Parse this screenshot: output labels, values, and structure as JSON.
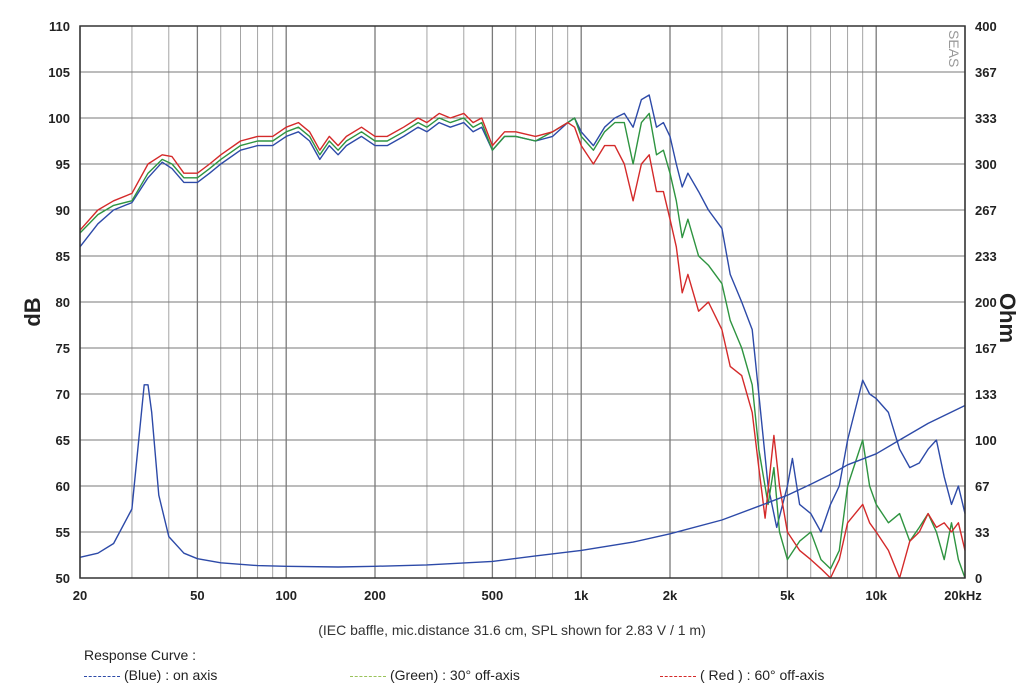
{
  "chart_data": {
    "type": "line",
    "title": "",
    "brand": "SEAS",
    "xlabel": "",
    "ylabel": "dB",
    "y2label": "Ohm",
    "x_scale": "log",
    "xlim": [
      20,
      20000
    ],
    "ylim": [
      50,
      110
    ],
    "y2lim": [
      0,
      400
    ],
    "grid": true,
    "x_ticks": [
      {
        "v": 20,
        "label": "20"
      },
      {
        "v": 50,
        "label": "50"
      },
      {
        "v": 100,
        "label": "100"
      },
      {
        "v": 200,
        "label": "200"
      },
      {
        "v": 500,
        "label": "500"
      },
      {
        "v": 1000,
        "label": "1k"
      },
      {
        "v": 2000,
        "label": "2k"
      },
      {
        "v": 5000,
        "label": "5k"
      },
      {
        "v": 10000,
        "label": "10k"
      },
      {
        "v": 20000,
        "label": "20kHz"
      }
    ],
    "y_ticks": [
      "50",
      "55",
      "60",
      "65",
      "70",
      "75",
      "80",
      "85",
      "90",
      "95",
      "100",
      "105",
      "110"
    ],
    "y2_ticks": [
      "0",
      "33",
      "67",
      "100",
      "133",
      "167",
      "200",
      "233",
      "267",
      "300",
      "333",
      "367",
      "400"
    ],
    "caption": "(IEC baffle, mic.distance 31.6 cm, SPL shown for 2.83 V / 1 m)",
    "legend_title": "Response Curve :",
    "legend": [
      {
        "label": "(Blue)  : on axis",
        "color": "#2d4aa8"
      },
      {
        "label": "(Green) : 30° off-axis",
        "color": "#9ac35a"
      },
      {
        "label": "( Red ) : 60° off-axis",
        "color": "#d42a2a"
      }
    ],
    "series": [
      {
        "color": "#2d4aa8",
        "axis": "left",
        "points": [
          [
            20,
            86
          ],
          [
            23,
            88.5
          ],
          [
            26,
            90
          ],
          [
            30,
            90.8
          ],
          [
            34,
            93.5
          ],
          [
            38,
            95.2
          ],
          [
            41,
            94.5
          ],
          [
            45,
            93
          ],
          [
            50,
            93
          ],
          [
            55,
            94
          ],
          [
            60,
            95
          ],
          [
            70,
            96.5
          ],
          [
            80,
            97
          ],
          [
            90,
            97
          ],
          [
            100,
            98
          ],
          [
            110,
            98.5
          ],
          [
            120,
            97.5
          ],
          [
            130,
            95.5
          ],
          [
            140,
            97
          ],
          [
            150,
            96
          ],
          [
            160,
            97
          ],
          [
            180,
            98
          ],
          [
            200,
            97
          ],
          [
            220,
            97
          ],
          [
            250,
            98
          ],
          [
            280,
            99
          ],
          [
            300,
            98.5
          ],
          [
            330,
            99.5
          ],
          [
            360,
            99
          ],
          [
            400,
            99.5
          ],
          [
            430,
            98.5
          ],
          [
            460,
            99
          ],
          [
            500,
            96.5
          ],
          [
            550,
            98
          ],
          [
            600,
            98
          ],
          [
            700,
            97.5
          ],
          [
            800,
            98
          ],
          [
            900,
            99.5
          ],
          [
            950,
            100
          ],
          [
            1000,
            98.5
          ],
          [
            1100,
            97
          ],
          [
            1200,
            99
          ],
          [
            1300,
            100
          ],
          [
            1400,
            100.5
          ],
          [
            1500,
            99
          ],
          [
            1600,
            102
          ],
          [
            1700,
            102.5
          ],
          [
            1800,
            99
          ],
          [
            1900,
            99.5
          ],
          [
            2000,
            98
          ],
          [
            2100,
            95
          ],
          [
            2200,
            92.5
          ],
          [
            2300,
            94
          ],
          [
            2500,
            92
          ],
          [
            2700,
            90
          ],
          [
            3000,
            88
          ],
          [
            3200,
            83
          ],
          [
            3500,
            80
          ],
          [
            3800,
            77
          ],
          [
            4000,
            70
          ],
          [
            4300,
            60
          ],
          [
            4600,
            55.5
          ],
          [
            5000,
            60
          ],
          [
            5200,
            63
          ],
          [
            5500,
            58
          ],
          [
            6000,
            57
          ],
          [
            6500,
            55
          ],
          [
            7000,
            58
          ],
          [
            7500,
            60
          ],
          [
            8000,
            65
          ],
          [
            9000,
            71.5
          ],
          [
            9500,
            70
          ],
          [
            10000,
            69.5
          ],
          [
            11000,
            68
          ],
          [
            12000,
            64
          ],
          [
            13000,
            62
          ],
          [
            14000,
            62.5
          ],
          [
            15000,
            64
          ],
          [
            16000,
            65
          ],
          [
            17000,
            61
          ],
          [
            18000,
            58
          ],
          [
            19000,
            60
          ],
          [
            20000,
            57
          ]
        ]
      },
      {
        "color": "#2e9440",
        "axis": "left",
        "points": [
          [
            20,
            87.5
          ],
          [
            23,
            89.5
          ],
          [
            26,
            90.5
          ],
          [
            30,
            91
          ],
          [
            34,
            94
          ],
          [
            38,
            95.5
          ],
          [
            41,
            95
          ],
          [
            45,
            93.5
          ],
          [
            50,
            93.5
          ],
          [
            55,
            94.5
          ],
          [
            60,
            95.5
          ],
          [
            70,
            97
          ],
          [
            80,
            97.5
          ],
          [
            90,
            97.5
          ],
          [
            100,
            98.5
          ],
          [
            110,
            99
          ],
          [
            120,
            98
          ],
          [
            130,
            96
          ],
          [
            140,
            97.5
          ],
          [
            150,
            96.5
          ],
          [
            160,
            97.5
          ],
          [
            180,
            98.5
          ],
          [
            200,
            97.5
          ],
          [
            220,
            97.5
          ],
          [
            250,
            98.5
          ],
          [
            280,
            99.5
          ],
          [
            300,
            99
          ],
          [
            330,
            100
          ],
          [
            360,
            99.5
          ],
          [
            400,
            100
          ],
          [
            430,
            99
          ],
          [
            460,
            99.5
          ],
          [
            500,
            96.5
          ],
          [
            550,
            98
          ],
          [
            600,
            98
          ],
          [
            700,
            97.5
          ],
          [
            800,
            98.5
          ],
          [
            900,
            99.5
          ],
          [
            950,
            100
          ],
          [
            1000,
            98
          ],
          [
            1100,
            96.5
          ],
          [
            1200,
            98.5
          ],
          [
            1300,
            99.5
          ],
          [
            1400,
            99.5
          ],
          [
            1500,
            95
          ],
          [
            1600,
            99.5
          ],
          [
            1700,
            100.5
          ],
          [
            1800,
            96
          ],
          [
            1900,
            96.5
          ],
          [
            2000,
            94
          ],
          [
            2100,
            91
          ],
          [
            2200,
            87
          ],
          [
            2300,
            89
          ],
          [
            2500,
            85
          ],
          [
            2700,
            84
          ],
          [
            3000,
            82
          ],
          [
            3200,
            78
          ],
          [
            3500,
            75
          ],
          [
            3800,
            71
          ],
          [
            4000,
            64
          ],
          [
            4300,
            58
          ],
          [
            4500,
            62
          ],
          [
            4700,
            55
          ],
          [
            5000,
            52
          ],
          [
            5500,
            54
          ],
          [
            6000,
            55
          ],
          [
            6500,
            52
          ],
          [
            7000,
            51
          ],
          [
            7500,
            53
          ],
          [
            8000,
            60
          ],
          [
            9000,
            65
          ],
          [
            9500,
            60
          ],
          [
            10000,
            58
          ],
          [
            11000,
            56
          ],
          [
            12000,
            57
          ],
          [
            13000,
            54
          ],
          [
            14000,
            55.5
          ],
          [
            15000,
            57
          ],
          [
            16000,
            55
          ],
          [
            17000,
            52
          ],
          [
            18000,
            56
          ],
          [
            19000,
            52
          ],
          [
            20000,
            50
          ]
        ]
      },
      {
        "color": "#d42a2a",
        "axis": "left",
        "points": [
          [
            20,
            87.8
          ],
          [
            23,
            90
          ],
          [
            26,
            91
          ],
          [
            30,
            91.8
          ],
          [
            34,
            95
          ],
          [
            38,
            96
          ],
          [
            41,
            95.8
          ],
          [
            45,
            94
          ],
          [
            50,
            94
          ],
          [
            55,
            95
          ],
          [
            60,
            96
          ],
          [
            70,
            97.5
          ],
          [
            80,
            98
          ],
          [
            90,
            98
          ],
          [
            100,
            99
          ],
          [
            110,
            99.5
          ],
          [
            120,
            98.5
          ],
          [
            130,
            96.5
          ],
          [
            140,
            98
          ],
          [
            150,
            97
          ],
          [
            160,
            98
          ],
          [
            180,
            99
          ],
          [
            200,
            98
          ],
          [
            220,
            98
          ],
          [
            250,
            99
          ],
          [
            280,
            100
          ],
          [
            300,
            99.5
          ],
          [
            330,
            100.5
          ],
          [
            360,
            100
          ],
          [
            400,
            100.5
          ],
          [
            430,
            99.5
          ],
          [
            460,
            100
          ],
          [
            500,
            97
          ],
          [
            550,
            98.5
          ],
          [
            600,
            98.5
          ],
          [
            700,
            98
          ],
          [
            800,
            98.5
          ],
          [
            900,
            99.5
          ],
          [
            950,
            99
          ],
          [
            1000,
            97
          ],
          [
            1100,
            95
          ],
          [
            1200,
            97
          ],
          [
            1300,
            97
          ],
          [
            1400,
            95
          ],
          [
            1500,
            91
          ],
          [
            1600,
            95
          ],
          [
            1700,
            96
          ],
          [
            1800,
            92
          ],
          [
            1900,
            92
          ],
          [
            2000,
            89
          ],
          [
            2100,
            86
          ],
          [
            2200,
            81
          ],
          [
            2300,
            83
          ],
          [
            2500,
            79
          ],
          [
            2700,
            80
          ],
          [
            3000,
            77
          ],
          [
            3200,
            73
          ],
          [
            3500,
            72
          ],
          [
            3800,
            68
          ],
          [
            4000,
            62
          ],
          [
            4200,
            56.5
          ],
          [
            4500,
            65.5
          ],
          [
            4700,
            60
          ],
          [
            5000,
            55
          ],
          [
            5500,
            53
          ],
          [
            6000,
            52
          ],
          [
            6500,
            51
          ],
          [
            7000,
            50
          ],
          [
            7500,
            52
          ],
          [
            8000,
            56
          ],
          [
            9000,
            58
          ],
          [
            9500,
            56
          ],
          [
            10000,
            55
          ],
          [
            11000,
            53
          ],
          [
            12000,
            50
          ],
          [
            13000,
            54
          ],
          [
            14000,
            55
          ],
          [
            15000,
            57
          ],
          [
            16000,
            55.5
          ],
          [
            17000,
            56
          ],
          [
            18000,
            55
          ],
          [
            19000,
            56
          ],
          [
            20000,
            53
          ]
        ]
      },
      {
        "color": "#2d4aa8",
        "axis": "right",
        "points": [
          [
            20,
            15
          ],
          [
            23,
            18
          ],
          [
            26,
            25
          ],
          [
            30,
            50
          ],
          [
            33,
            140
          ],
          [
            34,
            140
          ],
          [
            35,
            120
          ],
          [
            37,
            60
          ],
          [
            40,
            30
          ],
          [
            45,
            18
          ],
          [
            50,
            14
          ],
          [
            60,
            11
          ],
          [
            80,
            9
          ],
          [
            100,
            8.5
          ],
          [
            150,
            8
          ],
          [
            200,
            8.5
          ],
          [
            300,
            9.5
          ],
          [
            500,
            12
          ],
          [
            700,
            16
          ],
          [
            1000,
            20
          ],
          [
            1500,
            26
          ],
          [
            2000,
            32
          ],
          [
            3000,
            42
          ],
          [
            4000,
            52
          ],
          [
            5000,
            60
          ],
          [
            6000,
            68
          ],
          [
            7000,
            75
          ],
          [
            8000,
            82
          ],
          [
            10000,
            90
          ],
          [
            12000,
            100
          ],
          [
            15000,
            112
          ],
          [
            20000,
            125
          ]
        ]
      }
    ]
  }
}
